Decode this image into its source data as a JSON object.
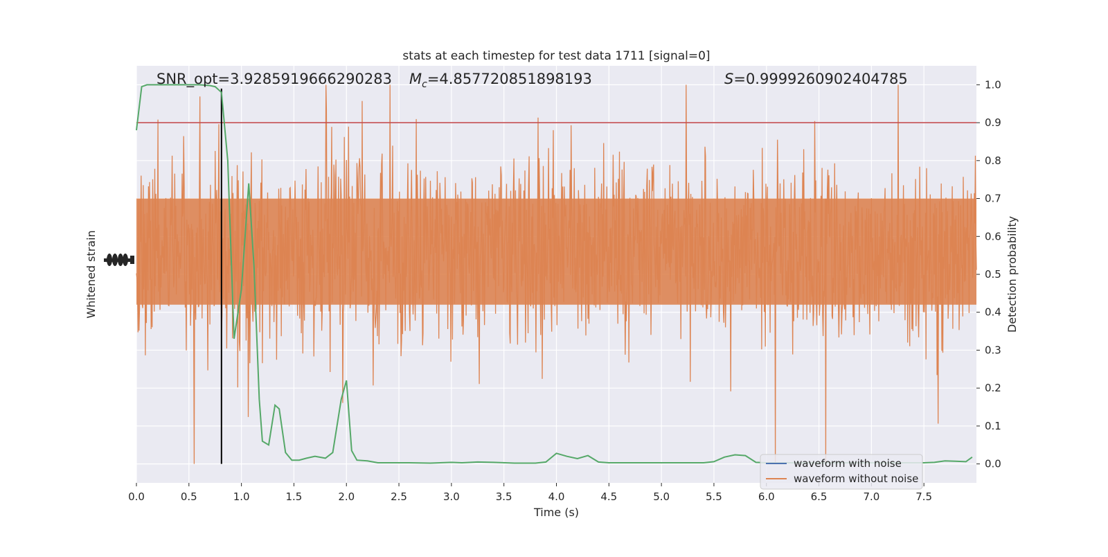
{
  "chart_data": {
    "type": "line",
    "title": "stats at each timestep for test data 1711 [signal=0]",
    "xlabel": "Time (s)",
    "ylabel_left": "Whitened strain",
    "ylabel_right": "Detection probability",
    "xlim": [
      0,
      8
    ],
    "ylim_right": [
      -0.05,
      1.05
    ],
    "x_ticks": [
      "0.0",
      "0.5",
      "1.0",
      "1.5",
      "2.0",
      "2.5",
      "3.0",
      "3.5",
      "4.0",
      "4.5",
      "5.0",
      "5.5",
      "6.0",
      "6.5",
      "7.0",
      "7.5"
    ],
    "x_tick_values": [
      0,
      0.5,
      1,
      1.5,
      2,
      2.5,
      3,
      3.5,
      4,
      4.5,
      5,
      5.5,
      6,
      6.5,
      7,
      7.5
    ],
    "y_ticks_right": [
      "0.0",
      "0.1",
      "0.2",
      "0.3",
      "0.4",
      "0.5",
      "0.6",
      "0.7",
      "0.8",
      "0.9",
      "1.0"
    ],
    "y_tick_values_right": [
      0,
      0.1,
      0.2,
      0.3,
      0.4,
      0.5,
      0.6,
      0.7,
      0.8,
      0.9,
      1.0
    ],
    "annotations": {
      "snr": "SNR_opt=3.9285919666290283",
      "mc_prefix": "M",
      "mc_sub": "c",
      "mc_value": "=4.857720851898193",
      "s_prefix": "S",
      "s_value": "=0.9999260902404785"
    },
    "threshold": 0.9,
    "marker_x": 0.81,
    "legend": {
      "position": "lower right",
      "entries": [
        "waveform with noise",
        "waveform without noise"
      ]
    },
    "colors": {
      "background": "#eaeaf2",
      "grid": "#ffffff",
      "strain": "#dd8452",
      "noise_series": "#4c72b0",
      "probability": "#55a868",
      "threshold": "#c44e52",
      "marker": "#000000"
    },
    "strain": {
      "description_level": "whitened strain noise, dense oscillation; spans roughly 0.0–1.0 on probability axis scale",
      "band_low": 0.3,
      "band_high": 0.78,
      "core_low": 0.42,
      "core_high": 0.7
    },
    "probability_series": {
      "name": "",
      "x": [
        0,
        0.05,
        0.1,
        0.15,
        0.2,
        0.3,
        0.4,
        0.5,
        0.6,
        0.7,
        0.75,
        0.81,
        0.87,
        0.93,
        1.0,
        1.07,
        1.12,
        1.17,
        1.2,
        1.26,
        1.32,
        1.36,
        1.42,
        1.48,
        1.55,
        1.62,
        1.7,
        1.8,
        1.87,
        1.95,
        2.0,
        2.05,
        2.1,
        2.2,
        2.3,
        2.4,
        2.6,
        2.8,
        3.0,
        3.1,
        3.25,
        3.4,
        3.6,
        3.8,
        3.9,
        4.0,
        4.1,
        4.2,
        4.3,
        4.4,
        4.5,
        4.6,
        4.8,
        5.0,
        5.2,
        5.4,
        5.5,
        5.6,
        5.7,
        5.8,
        5.9,
        6.0,
        6.1,
        6.3,
        6.5,
        6.7,
        6.9,
        7.1,
        7.3,
        7.5,
        7.6,
        7.7,
        7.8,
        7.9,
        7.96
      ],
      "y": [
        0.88,
        0.995,
        1.0,
        1.0,
        1.0,
        1.0,
        1.0,
        1.0,
        1.0,
        0.998,
        0.995,
        0.98,
        0.8,
        0.33,
        0.46,
        0.74,
        0.52,
        0.17,
        0.06,
        0.05,
        0.155,
        0.145,
        0.03,
        0.01,
        0.01,
        0.015,
        0.02,
        0.015,
        0.03,
        0.17,
        0.22,
        0.035,
        0.01,
        0.008,
        0.003,
        0.003,
        0.003,
        0.002,
        0.004,
        0.003,
        0.005,
        0.004,
        0.002,
        0.002,
        0.005,
        0.028,
        0.02,
        0.014,
        0.022,
        0.005,
        0.003,
        0.003,
        0.003,
        0.003,
        0.003,
        0.003,
        0.006,
        0.018,
        0.024,
        0.022,
        0.004,
        0.003,
        0.003,
        0.003,
        0.003,
        0.003,
        0.003,
        0.003,
        0.003,
        0.003,
        0.004,
        0.008,
        0.007,
        0.006,
        0.018
      ]
    }
  }
}
